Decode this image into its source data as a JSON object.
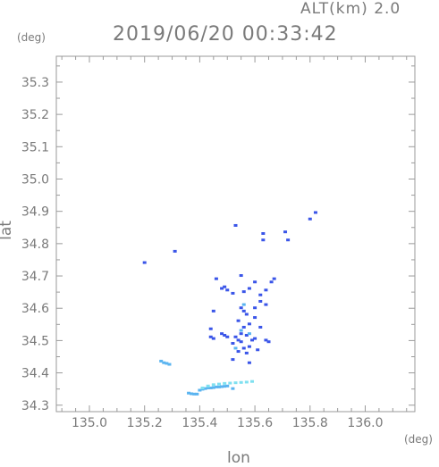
{
  "header": {
    "alt_label": "ALT(km) 2.0",
    "datetime": "2019/06/20 00:33:42"
  },
  "axes": {
    "y_unit": "(deg)",
    "x_unit": "(deg)",
    "x_label": "lon",
    "y_label": "lat"
  },
  "colors": {
    "frame": "#9a9a9a",
    "text": "#7a7a7a",
    "echo_blue": "#3a55e8",
    "echo_light": "#5ab4f0",
    "echo_cyan": "#7fe0f0"
  },
  "chart_data": {
    "type": "scatter",
    "title": "2019/06/20 00:33:42",
    "xlabel": "lon",
    "ylabel": "lat",
    "xlim": [
      134.88,
      136.18
    ],
    "ylim": [
      34.28,
      35.38
    ],
    "x_ticks": [
      135.0,
      135.2,
      135.4,
      135.6,
      135.8,
      136.0
    ],
    "x_tick_labels": [
      "135.0",
      "135.2",
      "135.4",
      "135.6",
      "135.8",
      "136.0"
    ],
    "y_ticks": [
      34.3,
      34.4,
      34.5,
      34.6,
      34.7,
      34.8,
      34.9,
      35.0,
      35.1,
      35.2,
      35.3
    ],
    "y_tick_labels": [
      "34.3",
      "34.4",
      "34.5",
      "34.6",
      "34.7",
      "34.8",
      "34.9",
      "35.0",
      "35.1",
      "35.2",
      "35.3"
    ],
    "grid": false,
    "series": [
      {
        "color": "#3a55e8",
        "points": [
          [
            135.2,
            34.74
          ],
          [
            135.31,
            34.775
          ],
          [
            135.49,
            34.665
          ],
          [
            135.46,
            34.69
          ],
          [
            135.53,
            34.855
          ],
          [
            135.63,
            34.81
          ],
          [
            135.63,
            34.83
          ],
          [
            135.72,
            34.81
          ],
          [
            135.71,
            34.835
          ],
          [
            135.8,
            34.875
          ],
          [
            135.82,
            34.895
          ],
          [
            135.52,
            34.645
          ],
          [
            135.56,
            34.65
          ],
          [
            135.58,
            34.66
          ],
          [
            135.62,
            34.64
          ],
          [
            135.64,
            34.655
          ],
          [
            135.66,
            34.68
          ],
          [
            135.67,
            34.69
          ],
          [
            135.6,
            34.68
          ],
          [
            135.55,
            34.7
          ],
          [
            135.48,
            34.66
          ],
          [
            135.5,
            34.655
          ],
          [
            135.62,
            34.62
          ],
          [
            135.64,
            34.61
          ],
          [
            135.6,
            34.6
          ],
          [
            135.56,
            34.59
          ],
          [
            135.55,
            34.6
          ],
          [
            135.57,
            34.58
          ],
          [
            135.54,
            34.56
          ],
          [
            135.58,
            34.55
          ],
          [
            135.56,
            34.54
          ],
          [
            135.55,
            34.52
          ],
          [
            135.57,
            34.515
          ],
          [
            135.53,
            34.51
          ],
          [
            135.54,
            34.5
          ],
          [
            135.55,
            34.495
          ],
          [
            135.52,
            34.49
          ],
          [
            135.59,
            34.5
          ],
          [
            135.6,
            34.505
          ],
          [
            135.58,
            34.48
          ],
          [
            135.56,
            34.475
          ],
          [
            135.61,
            34.47
          ],
          [
            135.64,
            34.5
          ],
          [
            135.65,
            34.495
          ],
          [
            135.45,
            34.59
          ],
          [
            135.44,
            34.535
          ],
          [
            135.44,
            34.51
          ],
          [
            135.45,
            34.505
          ],
          [
            135.48,
            34.52
          ],
          [
            135.49,
            34.515
          ],
          [
            135.5,
            34.51
          ],
          [
            135.52,
            34.44
          ],
          [
            135.58,
            34.43
          ],
          [
            135.57,
            34.46
          ],
          [
            135.54,
            34.465
          ],
          [
            135.6,
            34.57
          ],
          [
            135.62,
            34.54
          ]
        ]
      },
      {
        "color": "#5ab4f0",
        "points": [
          [
            135.26,
            34.435
          ],
          [
            135.27,
            34.43
          ],
          [
            135.28,
            34.428
          ],
          [
            135.29,
            34.425
          ],
          [
            135.36,
            34.336
          ],
          [
            135.37,
            34.334
          ],
          [
            135.38,
            34.333
          ],
          [
            135.39,
            34.333
          ],
          [
            135.4,
            34.345
          ],
          [
            135.41,
            34.348
          ],
          [
            135.42,
            34.35
          ],
          [
            135.43,
            34.352
          ],
          [
            135.44,
            34.352
          ],
          [
            135.45,
            34.353
          ],
          [
            135.46,
            34.355
          ],
          [
            135.47,
            34.355
          ],
          [
            135.48,
            34.356
          ],
          [
            135.49,
            34.357
          ],
          [
            135.5,
            34.358
          ],
          [
            135.52,
            34.35
          ],
          [
            135.56,
            34.61
          ],
          [
            135.55,
            34.53
          ],
          [
            135.58,
            34.52
          ],
          [
            135.53,
            34.475
          ]
        ]
      },
      {
        "color": "#7fe0f0",
        "points": [
          [
            135.45,
            34.362
          ],
          [
            135.47,
            34.364
          ],
          [
            135.49,
            34.366
          ],
          [
            135.51,
            34.367
          ],
          [
            135.53,
            34.368
          ],
          [
            135.55,
            34.369
          ],
          [
            135.57,
            34.37
          ],
          [
            135.59,
            34.372
          ],
          [
            135.43,
            34.358
          ],
          [
            135.41,
            34.352
          ]
        ]
      }
    ]
  }
}
